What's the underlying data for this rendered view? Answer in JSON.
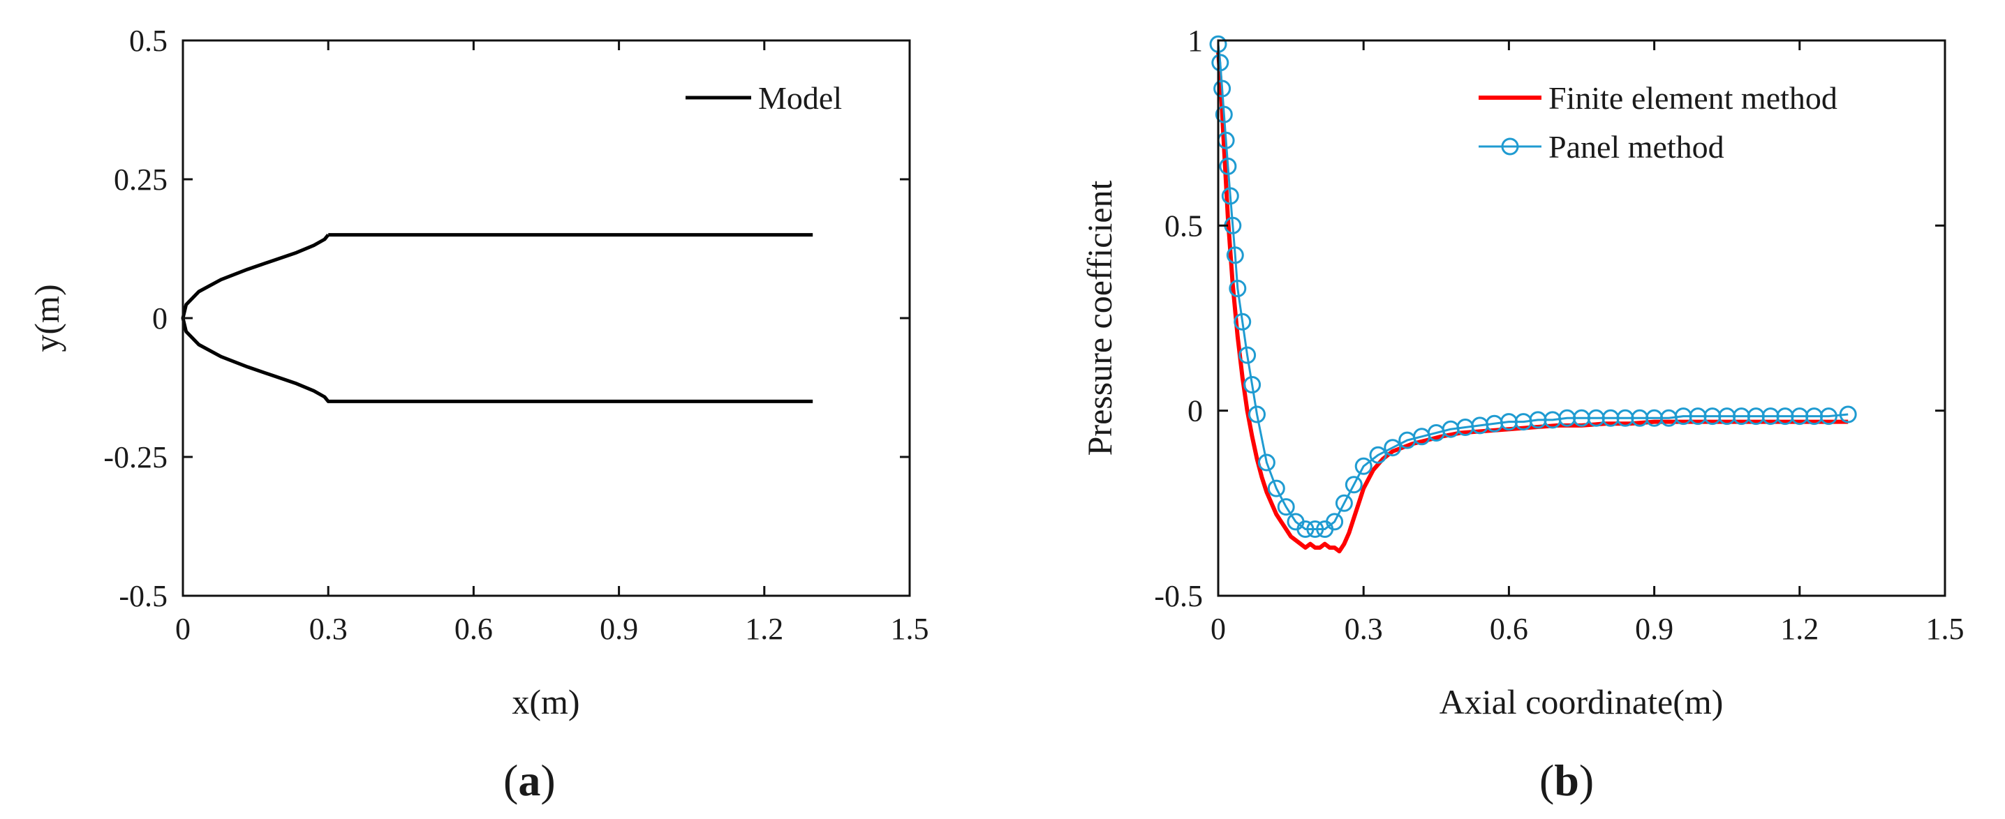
{
  "chart_data": [
    {
      "id": "a",
      "type": "line",
      "panel_label": "a",
      "xlabel": "x(m)",
      "ylabel": "y(m)",
      "xlim": [
        0,
        1.5
      ],
      "ylim": [
        -0.5,
        0.5
      ],
      "xticks": [
        0,
        0.3,
        0.6,
        0.9,
        1.2,
        1.5
      ],
      "xtick_labels": [
        "0",
        "0.3",
        "0.6",
        "0.9",
        "1.2",
        "1.5"
      ],
      "yticks": [
        -0.5,
        -0.25,
        0,
        0.25,
        0.5
      ],
      "ytick_labels": [
        "-0.5",
        "-0.25",
        "0",
        "0.25",
        "0.5"
      ],
      "legend_position": "top-right",
      "series": [
        {
          "name": "Model",
          "color": "#000000",
          "x": [
            0.3,
            0.2925,
            0.2703,
            0.2345,
            0.1875,
            0.1333,
            0.0787,
            0.0329,
            0.0066,
            0.0,
            0.0066,
            0.0329,
            0.0787,
            0.1333,
            0.1875,
            0.2345,
            0.2703,
            0.2925,
            0.3,
            1.3
          ],
          "y": [
            0.15,
            0.142,
            0.131,
            0.118,
            0.104,
            0.0878,
            0.0693,
            0.0478,
            0.0241,
            0.0,
            -0.0241,
            -0.0478,
            -0.0693,
            -0.0878,
            -0.104,
            -0.118,
            -0.131,
            -0.142,
            -0.15,
            -0.15
          ],
          "x_upper_tail": [
            0.3,
            1.3
          ],
          "y_upper_tail": [
            0.15,
            0.15
          ]
        }
      ]
    },
    {
      "id": "b",
      "type": "line",
      "panel_label": "b",
      "xlabel": "Axial coordinate(m)",
      "ylabel": "Pressure coefficient",
      "xlim": [
        0,
        1.5
      ],
      "ylim": [
        -0.5,
        1.0
      ],
      "xticks": [
        0,
        0.3,
        0.6,
        0.9,
        1.2,
        1.5
      ],
      "xtick_labels": [
        "0",
        "0.3",
        "0.6",
        "0.9",
        "1.2",
        "1.5"
      ],
      "yticks": [
        -0.5,
        0,
        0.5,
        1
      ],
      "ytick_labels": [
        "-0.5",
        "0",
        "0.5",
        "1"
      ],
      "legend_position": "top-right",
      "series": [
        {
          "name": "Finite element method",
          "color": "#ff0000",
          "x": [
            0,
            0.005,
            0.01,
            0.015,
            0.02,
            0.03,
            0.04,
            0.05,
            0.06,
            0.07,
            0.08,
            0.09,
            0.1,
            0.11,
            0.12,
            0.13,
            0.14,
            0.15,
            0.16,
            0.17,
            0.18,
            0.19,
            0.2,
            0.21,
            0.22,
            0.23,
            0.24,
            0.25,
            0.26,
            0.27,
            0.28,
            0.29,
            0.3,
            0.32,
            0.34,
            0.36,
            0.38,
            0.4,
            0.43,
            0.46,
            0.5,
            0.55,
            0.6,
            0.65,
            0.7,
            0.75,
            0.8,
            0.85,
            0.9,
            0.95,
            1.0,
            1.05,
            1.1,
            1.15,
            1.2,
            1.25,
            1.3
          ],
          "y": [
            0.97,
            0.88,
            0.76,
            0.64,
            0.52,
            0.34,
            0.2,
            0.09,
            0.0,
            -0.07,
            -0.13,
            -0.18,
            -0.22,
            -0.25,
            -0.28,
            -0.3,
            -0.32,
            -0.34,
            -0.35,
            -0.36,
            -0.37,
            -0.36,
            -0.37,
            -0.37,
            -0.36,
            -0.37,
            -0.37,
            -0.38,
            -0.36,
            -0.33,
            -0.29,
            -0.25,
            -0.21,
            -0.16,
            -0.13,
            -0.11,
            -0.1,
            -0.09,
            -0.08,
            -0.07,
            -0.06,
            -0.055,
            -0.05,
            -0.045,
            -0.04,
            -0.04,
            -0.035,
            -0.035,
            -0.03,
            -0.03,
            -0.03,
            -0.03,
            -0.03,
            -0.03,
            -0.03,
            -0.03,
            -0.03
          ]
        },
        {
          "name": "Panel method",
          "color": "#1f9bd1",
          "x": [
            0,
            0.004,
            0.008,
            0.012,
            0.016,
            0.02,
            0.025,
            0.03,
            0.035,
            0.04,
            0.05,
            0.06,
            0.07,
            0.08,
            0.1,
            0.12,
            0.14,
            0.16,
            0.18,
            0.2,
            0.22,
            0.24,
            0.26,
            0.28,
            0.3,
            0.33,
            0.36,
            0.39,
            0.42,
            0.45,
            0.48,
            0.51,
            0.54,
            0.57,
            0.6,
            0.63,
            0.66,
            0.69,
            0.72,
            0.75,
            0.78,
            0.81,
            0.84,
            0.87,
            0.9,
            0.93,
            0.96,
            0.99,
            1.02,
            1.05,
            1.08,
            1.11,
            1.14,
            1.17,
            1.2,
            1.23,
            1.26,
            1.3
          ],
          "y": [
            0.99,
            0.94,
            0.87,
            0.8,
            0.73,
            0.66,
            0.58,
            0.5,
            0.42,
            0.33,
            0.24,
            0.15,
            0.07,
            -0.01,
            -0.14,
            -0.21,
            -0.26,
            -0.3,
            -0.32,
            -0.32,
            -0.32,
            -0.3,
            -0.25,
            -0.2,
            -0.15,
            -0.12,
            -0.1,
            -0.08,
            -0.07,
            -0.06,
            -0.05,
            -0.045,
            -0.04,
            -0.035,
            -0.03,
            -0.03,
            -0.025,
            -0.025,
            -0.02,
            -0.02,
            -0.02,
            -0.02,
            -0.02,
            -0.02,
            -0.02,
            -0.02,
            -0.015,
            -0.015,
            -0.015,
            -0.015,
            -0.015,
            -0.015,
            -0.015,
            -0.015,
            -0.015,
            -0.015,
            -0.015,
            -0.01
          ]
        }
      ]
    }
  ]
}
